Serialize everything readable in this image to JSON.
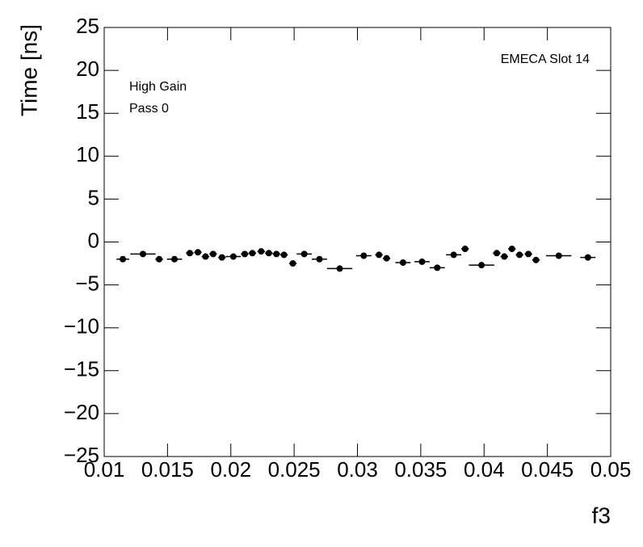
{
  "chart_data": {
    "type": "scatter",
    "x_label": "f3",
    "y_label": "Time [ns]",
    "annotations": [
      "EMECA Slot 14",
      "High Gain",
      "Pass 0"
    ],
    "color": "#000000",
    "x": [
      0.01147,
      0.01306,
      0.01434,
      0.01555,
      0.01676,
      0.0174,
      0.018,
      0.0186,
      0.0193,
      0.0202,
      0.0211,
      0.0217,
      0.0224,
      0.023,
      0.0236,
      0.0242,
      0.0249,
      0.0258,
      0.027,
      0.0286,
      0.0305,
      0.0317,
      0.0323,
      0.0336,
      0.0351,
      0.0363,
      0.0376,
      0.0385,
      0.0398,
      0.041,
      0.0416,
      0.0422,
      0.0428,
      0.0435,
      0.0441,
      0.0459,
      0.0482
    ],
    "xerr": [
      0.0005,
      0.001,
      0.0003,
      0.0006,
      0.0003,
      0.0003,
      0.0003,
      0.0003,
      0.0003,
      0.0006,
      0.0003,
      0.0003,
      0.0003,
      0.0003,
      0.0003,
      0.0003,
      0.0003,
      0.0006,
      0.0006,
      0.001,
      0.0006,
      0.0003,
      0.0003,
      0.0006,
      0.0006,
      0.0006,
      0.0006,
      0.0003,
      0.001,
      0.0003,
      0.0003,
      0.0003,
      0.0003,
      0.0003,
      0.0003,
      0.001,
      0.0006
    ],
    "values": [
      -2.0,
      -1.4,
      -2.0,
      -2.0,
      -1.3,
      -1.2,
      -1.7,
      -1.4,
      -1.8,
      -1.7,
      -1.4,
      -1.3,
      -1.1,
      -1.3,
      -1.4,
      -1.5,
      -2.5,
      -1.4,
      -2.0,
      -3.1,
      -1.6,
      -1.5,
      -1.9,
      -2.4,
      -2.3,
      -3.0,
      -1.5,
      -0.8,
      -2.7,
      -1.3,
      -1.7,
      -0.8,
      -1.5,
      -1.4,
      -2.1,
      -1.6,
      -1.8
    ],
    "xlim": [
      0.01,
      0.05
    ],
    "xticks": [
      0.01,
      0.015,
      0.02,
      0.025,
      0.03,
      0.035,
      0.04,
      0.045,
      0.05
    ],
    "ylim": [
      -25,
      25
    ],
    "yticks": [
      {
        "value": -25,
        "label": "−25"
      },
      {
        "value": -20,
        "label": "−20"
      },
      {
        "value": -15,
        "label": "−15"
      },
      {
        "value": -10,
        "label": "−10"
      },
      {
        "value": -5,
        "label": "−5"
      },
      0,
      5,
      10,
      15,
      20,
      25
    ]
  }
}
